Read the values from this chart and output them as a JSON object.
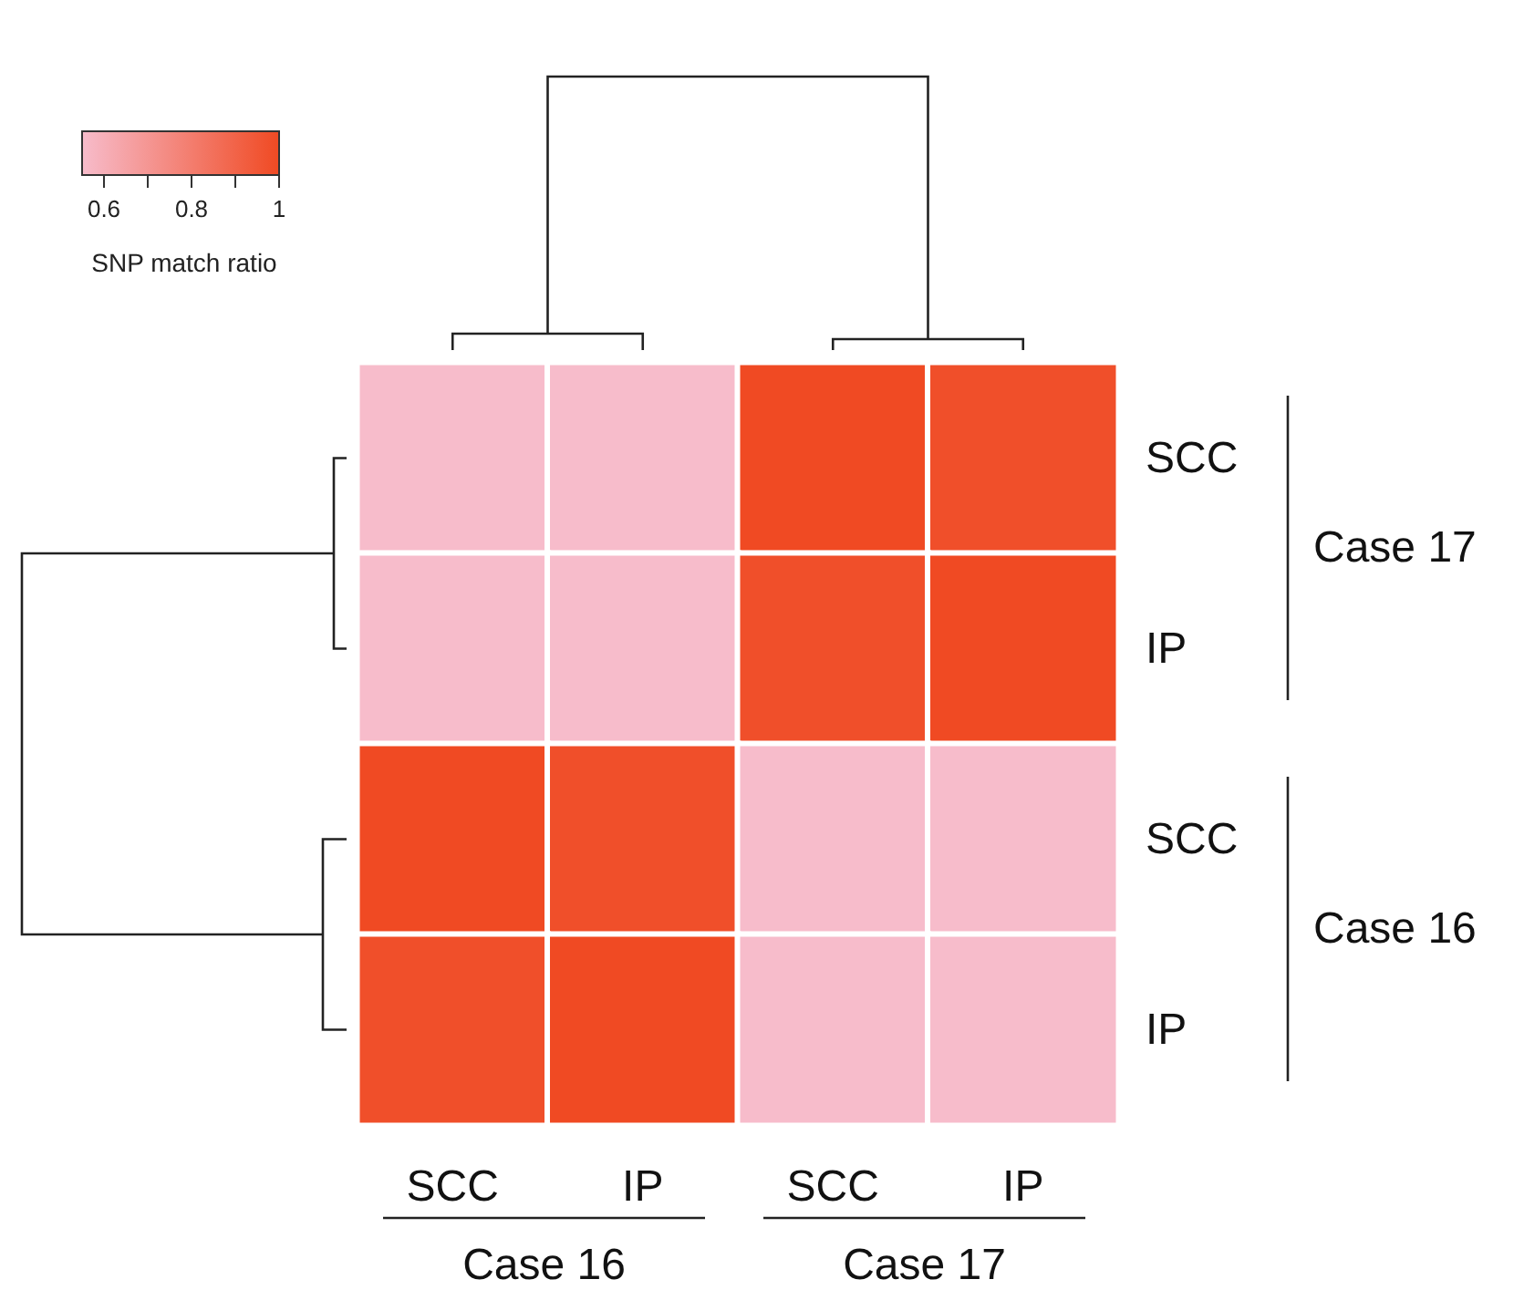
{
  "chart_data": {
    "type": "heatmap",
    "categories": [
      "SCC",
      "IP",
      "SCC",
      "IP"
    ],
    "y_categories": [
      "SCC",
      "IP",
      "SCC",
      "IP"
    ],
    "cells": [
      [
        0.55,
        0.55,
        1,
        0.98
      ],
      [
        0.55,
        0.55,
        0.98,
        1
      ],
      [
        1,
        0.98,
        0.55,
        0.55
      ],
      [
        0.98,
        1,
        0.55,
        0.55
      ]
    ],
    "clim": [
      0.55,
      1
    ],
    "cticks": [
      0.6,
      {
        "value": 0.7,
        "label": null
      },
      0.8,
      {
        "value": 0.9,
        "label": null
      },
      1
    ],
    "clabel": "SNP match ratio",
    "annotations": [
      "Case 16",
      "Case 17",
      "Case 17",
      "Case 16"
    ]
  }
}
